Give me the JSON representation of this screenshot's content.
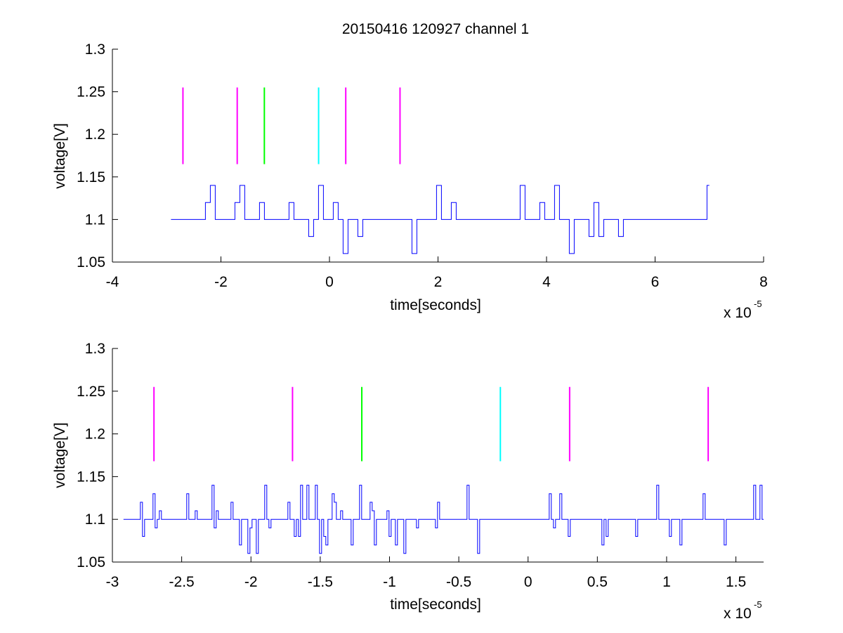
{
  "chart_data": [
    {
      "type": "line",
      "title": "20150416 120927 channel 1",
      "xlabel": "time[seconds]",
      "ylabel": "voltage[V]",
      "xlim": [
        -4e-05,
        8e-05
      ],
      "ylim": [
        1.05,
        1.3
      ],
      "x_exponent_label": "x 10",
      "x_exponent": "-5",
      "xtick_labels": [
        "-4",
        "-2",
        "0",
        "2",
        "4",
        "6",
        "8"
      ],
      "ytick_labels": [
        "1.05",
        "1.1",
        "1.15",
        "1.2",
        "1.25",
        "1.3"
      ],
      "grid": false,
      "legend": "none",
      "signal": {
        "color": "#0000ff",
        "x_start": -2.92e-05,
        "x_end": 7e-05,
        "levels": [
          1.06,
          1.08,
          1.1,
          1.12,
          1.14
        ],
        "baseline": 1.1
      },
      "markers": [
        {
          "x": -2.7e-05,
          "y0": 1.165,
          "y1": 1.255,
          "color": "#ff00ff"
        },
        {
          "x": -1.7e-05,
          "y0": 1.165,
          "y1": 1.255,
          "color": "#ff00ff"
        },
        {
          "x": -1.2e-05,
          "y0": 1.165,
          "y1": 1.255,
          "color": "#00ff00"
        },
        {
          "x": -2e-06,
          "y0": 1.165,
          "y1": 1.255,
          "color": "#00ffff"
        },
        {
          "x": 3e-06,
          "y0": 1.165,
          "y1": 1.255,
          "color": "#ff00ff"
        },
        {
          "x": 1.3e-05,
          "y0": 1.165,
          "y1": 1.255,
          "color": "#ff00ff"
        }
      ]
    },
    {
      "type": "line",
      "title": "",
      "xlabel": "time[seconds]",
      "ylabel": "voltage[V]",
      "xlim": [
        -3e-05,
        1.7e-05
      ],
      "ylim": [
        1.05,
        1.3
      ],
      "x_exponent_label": "x 10",
      "x_exponent": "-5",
      "xtick_labels": [
        "-3",
        "-2.5",
        "-2",
        "-1.5",
        "-1",
        "-0.5",
        "0",
        "0.5",
        "1",
        "1.5"
      ],
      "ytick_labels": [
        "1.05",
        "1.1",
        "1.15",
        "1.2",
        "1.25",
        "1.3"
      ],
      "grid": false,
      "legend": "none",
      "signal": {
        "color": "#0000ff",
        "x_start": -2.92e-05,
        "x_end": 1.7e-05,
        "levels": [
          1.06,
          1.07,
          1.08,
          1.09,
          1.1,
          1.11,
          1.12,
          1.13,
          1.14
        ],
        "baseline": 1.1
      },
      "markers": [
        {
          "x": -2.7e-05,
          "y0": 1.168,
          "y1": 1.255,
          "color": "#ff00ff"
        },
        {
          "x": -1.7e-05,
          "y0": 1.168,
          "y1": 1.255,
          "color": "#ff00ff"
        },
        {
          "x": -1.2e-05,
          "y0": 1.168,
          "y1": 1.255,
          "color": "#00ff00"
        },
        {
          "x": -2e-06,
          "y0": 1.168,
          "y1": 1.255,
          "color": "#00ffff"
        },
        {
          "x": 3e-06,
          "y0": 1.168,
          "y1": 1.255,
          "color": "#ff00ff"
        },
        {
          "x": 1.3e-05,
          "y0": 1.168,
          "y1": 1.255,
          "color": "#ff00ff"
        }
      ]
    }
  ]
}
